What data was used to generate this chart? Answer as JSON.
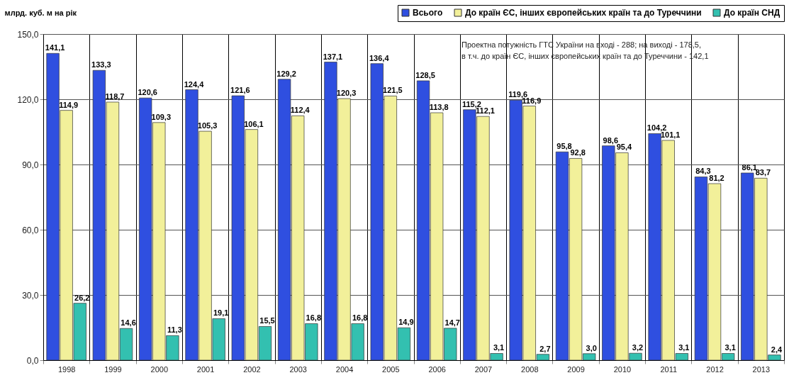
{
  "chart_data": {
    "type": "bar",
    "ylabel": "млрд. куб. м на рік",
    "categories": [
      "1998",
      "1999",
      "2000",
      "2001",
      "2002",
      "2003",
      "2004",
      "2005",
      "2006",
      "2007",
      "2008",
      "2009",
      "2010",
      "2011",
      "2012",
      "2013"
    ],
    "series": [
      {
        "name": "Всього",
        "color": "#2f4fe0",
        "values": [
          141.1,
          133.3,
          120.6,
          124.4,
          121.6,
          129.2,
          137.1,
          136.4,
          128.5,
          115.2,
          119.6,
          95.8,
          98.6,
          104.2,
          84.3,
          86.1
        ],
        "value_labels": [
          "141,1",
          "133,3",
          "120,6",
          "124,4",
          "121,6",
          "129,2",
          "137,1",
          "136,4",
          "128,5",
          "115,2",
          "119,6",
          "95,8",
          "98,6",
          "104,2",
          "84,3",
          "86,1"
        ]
      },
      {
        "name": "До країн ЄС, інших європейських країн та до Туреччини",
        "color": "#f2f09a",
        "values": [
          114.9,
          118.7,
          109.3,
          105.3,
          106.1,
          112.4,
          120.3,
          121.5,
          113.8,
          112.1,
          116.9,
          92.8,
          95.4,
          101.1,
          81.2,
          83.7
        ],
        "value_labels": [
          "114,9",
          "118,7",
          "109,3",
          "105,3",
          "106,1",
          "112,4",
          "120,3",
          "121,5",
          "113,8",
          "112,1",
          "116,9",
          "92,8",
          "95,4",
          "101,1",
          "81,2",
          "83,7"
        ]
      },
      {
        "name": "До країн СНД",
        "color": "#33c0b0",
        "values": [
          26.2,
          14.6,
          11.3,
          19.1,
          15.5,
          16.8,
          16.8,
          14.9,
          14.7,
          3.1,
          2.7,
          3.0,
          3.2,
          3.1,
          3.1,
          2.4
        ],
        "value_labels": [
          "26,2",
          "14,6",
          "11,3",
          "19,1",
          "15,5",
          "16,8",
          "16,8",
          "14,9",
          "14,7",
          "3,1",
          "2,7",
          "3,0",
          "3,2",
          "3,1",
          "3,1",
          "2,4"
        ]
      }
    ],
    "ylim": [
      0,
      150
    ],
    "yticks": [
      {
        "value": 0,
        "label": "0,0"
      },
      {
        "value": 30,
        "label": "30,0"
      },
      {
        "value": 60,
        "label": "60,0"
      },
      {
        "value": 90,
        "label": "90,0"
      },
      {
        "value": 120,
        "label": "120,0"
      },
      {
        "value": 150,
        "label": "150,0"
      }
    ],
    "grid": true,
    "legend": "top right",
    "annotations": [
      "Проектна потужність ГТС України  на вході - 288; на виході - 178,5,",
      "в т.ч. до країн ЄС, інших європейських країн та до Туреччини - 142,1"
    ]
  }
}
